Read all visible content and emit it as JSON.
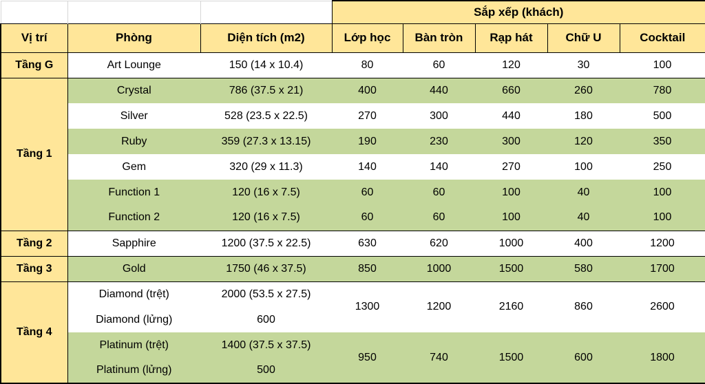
{
  "table": {
    "merged_header": "Sắp xếp (khách)",
    "columns": [
      "Vị trí",
      "Phòng",
      "Diện tích (m2)",
      "Lớp học",
      "Bàn tròn",
      "Rạp hát",
      "Chữ U",
      "Cocktail"
    ],
    "colors": {
      "header_fill": "#FFE699",
      "row_stripe_fill": "#C4D79B",
      "row_plain_fill": "#FFFFFF",
      "border": "#000000",
      "gridline": "#D6D6D6",
      "text": "#000000"
    },
    "groups": [
      {
        "location": "Tầng G",
        "rows": [
          {
            "room": "Art Lounge",
            "area": "150 (14 x 10.4)",
            "fill": "white",
            "capacities": [
              "80",
              "60",
              "120",
              "30",
              "100"
            ]
          }
        ]
      },
      {
        "location": "Tầng 1",
        "rows": [
          {
            "room": "Crystal",
            "area": "786 (37.5 x 21)",
            "fill": "green",
            "capacities": [
              "400",
              "440",
              "660",
              "260",
              "780"
            ]
          },
          {
            "room": "Silver",
            "area": "528 (23.5 x 22.5)",
            "fill": "white",
            "capacities": [
              "270",
              "300",
              "440",
              "180",
              "500"
            ]
          },
          {
            "room": "Ruby",
            "area": "359 (27.3 x 13.15)",
            "fill": "green",
            "capacities": [
              "190",
              "230",
              "300",
              "120",
              "350"
            ]
          },
          {
            "room": "Gem",
            "area": "320 (29 x 11.3)",
            "fill": "white",
            "capacities": [
              "140",
              "140",
              "270",
              "100",
              "250"
            ]
          },
          {
            "room": "Function 1",
            "area": "120 (16 x 7.5)",
            "fill": "green",
            "capacities": [
              "60",
              "60",
              "100",
              "40",
              "100"
            ]
          },
          {
            "room": "Function 2",
            "area": "120 (16 x 7.5)",
            "fill": "green",
            "capacities": [
              "60",
              "60",
              "100",
              "40",
              "100"
            ]
          }
        ]
      },
      {
        "location": "Tầng 2",
        "rows": [
          {
            "room": "Sapphire",
            "area": "1200 (37.5 x 22.5)",
            "fill": "white",
            "capacities": [
              "630",
              "620",
              "1000",
              "400",
              "1200"
            ]
          }
        ]
      },
      {
        "location": "Tầng 3",
        "rows": [
          {
            "room": "Gold",
            "area": "1750 (46 x 37.5)",
            "fill": "green",
            "capacities": [
              "850",
              "1000",
              "1500",
              "580",
              "1700"
            ]
          }
        ]
      },
      {
        "location": "Tầng 4",
        "rows": [
          {
            "room": "Diamond (trệt)",
            "area": "2000 (53.5 x 27.5)",
            "fill": "white",
            "capacities": [
              "1300",
              "1200",
              "2160",
              "860",
              "2600"
            ],
            "capacity_rowspan": 2
          },
          {
            "room": "Diamond (lửng)",
            "area": "600",
            "fill": "white",
            "capacities": null
          },
          {
            "room": "Platinum (trệt)",
            "area": "1400 (37.5 x 37.5)",
            "fill": "green",
            "capacities": [
              "950",
              "740",
              "1500",
              "600",
              "1800"
            ],
            "capacity_rowspan": 2
          },
          {
            "room": "Platinum (lửng)",
            "area": "500",
            "fill": "green",
            "capacities": null
          }
        ]
      }
    ]
  }
}
